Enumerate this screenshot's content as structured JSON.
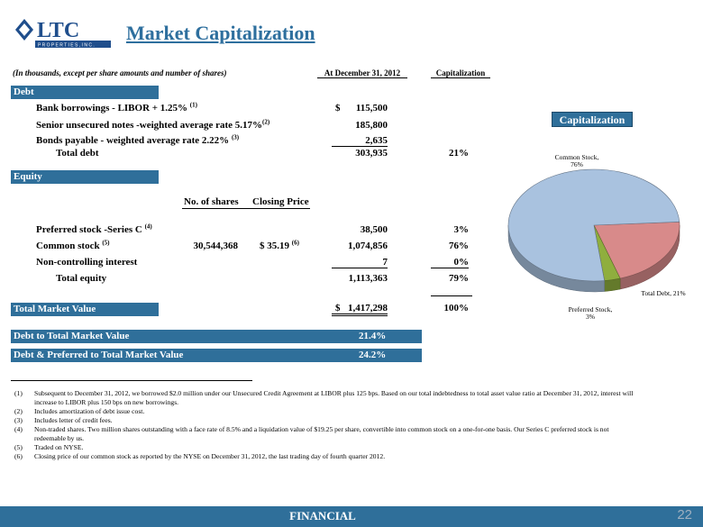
{
  "title": "Market Capitalization",
  "logo": {
    "text": "LTC",
    "subtext": "P R O P E R T I E S , I N C ."
  },
  "table_header": {
    "units": "(In thousands, except per share amounts and number of shares)",
    "col1": "At December 31, 2012",
    "col2": "Capitalization"
  },
  "sections": {
    "debt": "Debt",
    "equity": "Equity",
    "total_market_value": "Total Market Value"
  },
  "debt_rows": [
    {
      "label": "Bank borrowings - LIBOR + 1.25% ",
      "sup": "(1)",
      "value": "115,500",
      "prefix": "$"
    },
    {
      "label": "Senior unsecured notes -weighted average rate 5.17%",
      "sup": "(2)",
      "value": "185,800"
    },
    {
      "label": "Bonds payable  - weighted average rate 2.22% ",
      "sup": "(3)",
      "value": "2,635"
    }
  ],
  "total_debt": {
    "label": "Total debt",
    "value": "303,935",
    "pct": "21%"
  },
  "equity_cols": {
    "shares": "No. of shares",
    "price": "Closing Price"
  },
  "equity_rows": [
    {
      "label": "Preferred stock -Series C ",
      "sup": "(4)",
      "value": "38,500",
      "pct": "3%"
    },
    {
      "label": "Common stock ",
      "sup": "(5)",
      "shares": "30,544,368",
      "price": "$  35.19 ",
      "price_sup": "(6)",
      "value": "1,074,856",
      "pct": "76%"
    },
    {
      "label": "Non-controlling interest",
      "value": "7",
      "pct": "0%"
    }
  ],
  "total_equity": {
    "label": "Total equity",
    "value": "1,113,363",
    "pct": "79%"
  },
  "total_market": {
    "prefix": "$",
    "value": "1,417,298",
    "pct": "100%"
  },
  "ratios": [
    {
      "label": "Debt to Total Market Value",
      "value": "21.4%"
    },
    {
      "label": "Debt & Preferred to Total Market Value",
      "value": "24.2%"
    }
  ],
  "notes": [
    {
      "n": "(1)",
      "text": "Subsequent to December 31, 2012, we borrowed $2.0 million under our Unsecured Credit Agreement at LIBOR plus 125 bps.  Based on our total indebtedness to total asset value ratio at December 31, 2012, interest will increase to LIBOR plus 150 bps on new borrowings."
    },
    {
      "n": "(2)",
      "text": "Includes amortization of debt issue cost."
    },
    {
      "n": "(3)",
      "text": "Includes letter of credit fees."
    },
    {
      "n": "(4)",
      "text": "Non-traded shares.  Two million shares outstanding with a face rate of 8.5% and a liquidation value of $19.25 per share, convertible into common stock on a one-for-one basis.  Our Series C preferred stock is not redeemable by us."
    },
    {
      "n": "(5)",
      "text": "Traded on NYSE."
    },
    {
      "n": "(6)",
      "text": "Closing price of our common stock as reported by the NYSE on December 31, 2012, the last trading day of fourth quarter 2012."
    }
  ],
  "footer": {
    "label": "FINANCIAL",
    "page": "22"
  },
  "chart_data": {
    "type": "pie",
    "title": "Capitalization",
    "slices": [
      {
        "name": "Common Stock, 76%",
        "value": 76,
        "color": "#a9c2df"
      },
      {
        "name": "Total Debt, 21%",
        "value": 21,
        "color": "#d88a8a"
      },
      {
        "name": "Preferred Stock, 3%",
        "value": 3,
        "color": "#8fae3e"
      }
    ]
  }
}
